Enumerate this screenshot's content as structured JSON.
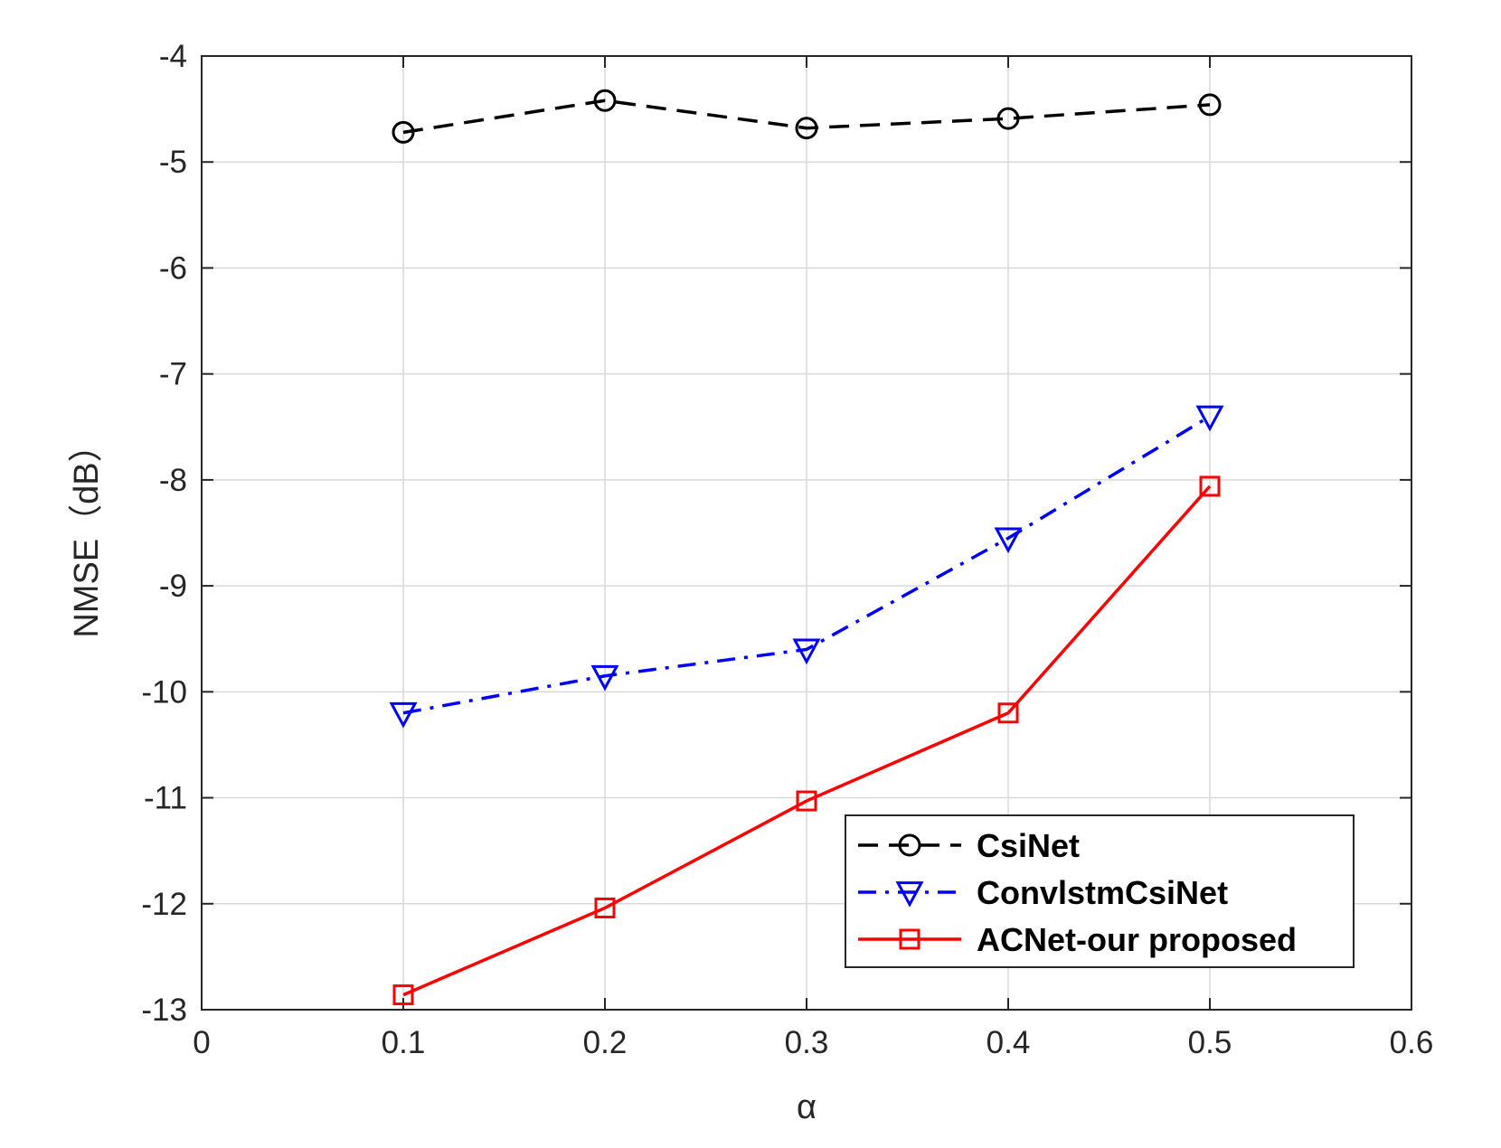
{
  "chart_data": {
    "type": "line",
    "xlabel": "α",
    "ylabel": "NMSE（dB）",
    "xlim": [
      0,
      0.6
    ],
    "ylim": [
      -13,
      -4
    ],
    "xticks": [
      0,
      0.1,
      0.2,
      0.3,
      0.4,
      0.5,
      0.6
    ],
    "yticks": [
      -4,
      -5,
      -6,
      -7,
      -8,
      -9,
      -10,
      -11,
      -12,
      -13
    ],
    "grid": true,
    "legend_position": "bottom-right",
    "x": [
      0.1,
      0.2,
      0.3,
      0.4,
      0.5
    ],
    "series": [
      {
        "name": "CsiNet",
        "values": [
          -4.72,
          -4.42,
          -4.68,
          -4.59,
          -4.46
        ],
        "color": "#000000",
        "line_style": "dashed",
        "marker": "circle"
      },
      {
        "name": "ConvlstmCsiNet",
        "values": [
          -10.2,
          -9.85,
          -9.6,
          -8.55,
          -7.4
        ],
        "color": "#0000ff",
        "line_style": "dash-dot",
        "marker": "triangle-down"
      },
      {
        "name": "ACNet-our proposed",
        "values": [
          -12.86,
          -12.04,
          -11.03,
          -10.2,
          -8.06
        ],
        "color": "#ff0000",
        "line_style": "solid",
        "marker": "square"
      }
    ]
  }
}
